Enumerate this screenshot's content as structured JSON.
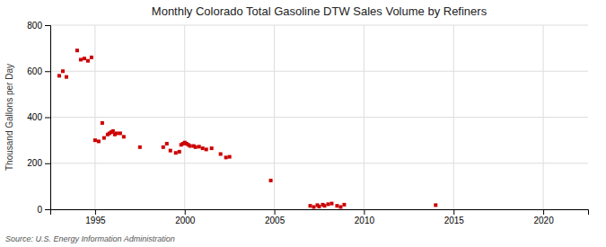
{
  "chart_data": {
    "type": "scatter",
    "title": "Monthly Colorado Total Gasoline DTW Sales Volume by Refiners",
    "ylabel": "Thousand Gallons per Day",
    "annotations": [
      "Source: U.S. Energy Information Administration"
    ],
    "color": "#cc0000",
    "marker": "square",
    "grid": true,
    "xlim": [
      1992.5,
      2022.5
    ],
    "ylim": [
      0,
      800
    ],
    "xticks": [
      1995,
      2000,
      2005,
      2010,
      2015,
      2020
    ],
    "yticks": [
      0,
      200,
      400,
      600,
      800
    ],
    "x": [
      1993.0,
      1993.2,
      1993.4,
      1994.0,
      1994.2,
      1994.4,
      1994.6,
      1994.8,
      1995.0,
      1995.2,
      1995.4,
      1995.5,
      1995.7,
      1995.8,
      1995.9,
      1996.0,
      1996.1,
      1996.2,
      1996.4,
      1996.6,
      1997.5,
      1998.8,
      1999.0,
      1999.2,
      1999.5,
      1999.7,
      1999.8,
      1999.9,
      2000.0,
      2000.1,
      2000.2,
      2000.3,
      2000.5,
      2000.6,
      2000.8,
      2001.0,
      2001.2,
      2001.5,
      2002.0,
      2002.3,
      2002.5,
      2004.8,
      2007.0,
      2007.2,
      2007.4,
      2007.5,
      2007.7,
      2007.8,
      2008.0,
      2008.2,
      2008.5,
      2008.7,
      2008.9,
      2014.0
    ],
    "values": [
      580,
      600,
      575,
      690,
      650,
      655,
      645,
      660,
      300,
      295,
      375,
      310,
      325,
      330,
      335,
      340,
      325,
      330,
      330,
      315,
      270,
      270,
      285,
      255,
      245,
      250,
      280,
      285,
      290,
      285,
      280,
      275,
      275,
      270,
      272,
      265,
      260,
      265,
      240,
      225,
      228,
      125,
      15,
      10,
      18,
      12,
      20,
      15,
      22,
      25,
      15,
      10,
      20,
      18
    ]
  }
}
